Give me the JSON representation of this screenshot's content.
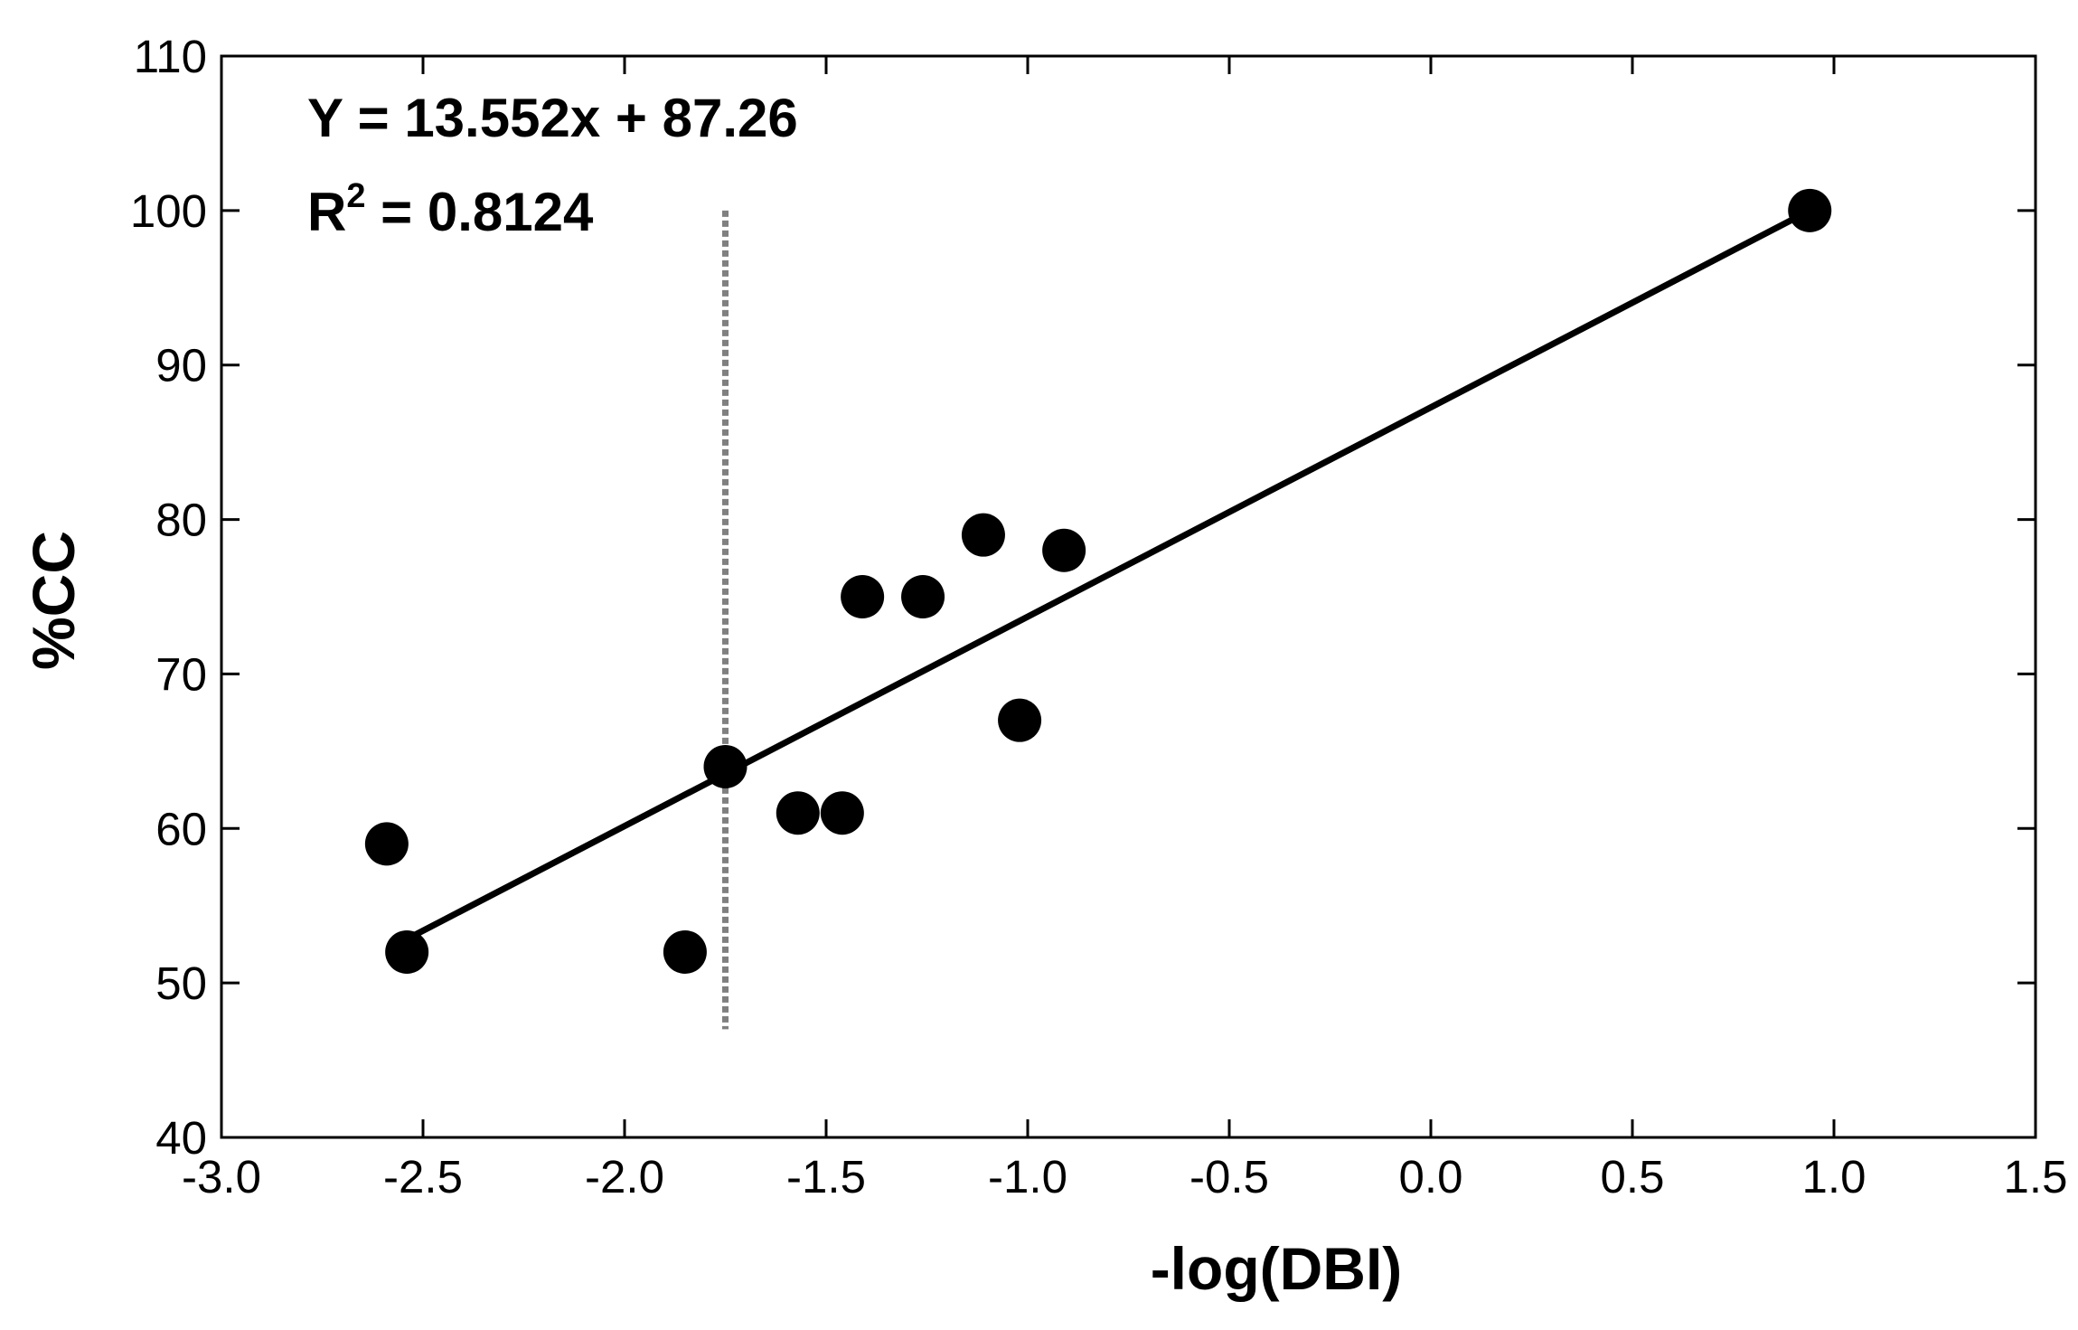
{
  "chart_data": {
    "type": "scatter",
    "xlabel": "-log(DBI)",
    "ylabel": "%CC",
    "xlim": [
      -3.0,
      1.5
    ],
    "ylim": [
      40,
      110
    ],
    "xticks": [
      "-3.0",
      "-2.5",
      "-2.0",
      "-1.5",
      "-1.0",
      "-0.5",
      "0.0",
      "0.5",
      "1.0",
      "1.5"
    ],
    "yticks": [
      "40",
      "50",
      "60",
      "70",
      "80",
      "90",
      "100",
      "110"
    ],
    "grid": false,
    "points": [
      {
        "x": -2.59,
        "y": 59
      },
      {
        "x": -2.54,
        "y": 52
      },
      {
        "x": -1.85,
        "y": 52
      },
      {
        "x": -1.75,
        "y": 64
      },
      {
        "x": -1.57,
        "y": 61
      },
      {
        "x": -1.46,
        "y": 61
      },
      {
        "x": -1.41,
        "y": 75
      },
      {
        "x": -1.26,
        "y": 75
      },
      {
        "x": -1.11,
        "y": 79
      },
      {
        "x": -1.02,
        "y": 67
      },
      {
        "x": -0.91,
        "y": 78
      },
      {
        "x": 0.94,
        "y": 100
      }
    ],
    "fit_line": {
      "slope": 13.552,
      "intercept": 87.26,
      "x_start": -2.54,
      "x_end": 0.94
    },
    "reference_line": {
      "x": -1.75,
      "y_from": 47,
      "y_to": 100,
      "style": "dotted",
      "color": "#808080"
    },
    "annotations": {
      "equation": "Y = 13.552x + 87.26",
      "r2_prefix": "R",
      "r2_sup": "2",
      "r2_suffix": " = 0.8124"
    },
    "colors": {
      "points": "#000000",
      "fit": "#000000",
      "reference": "#808080"
    }
  }
}
